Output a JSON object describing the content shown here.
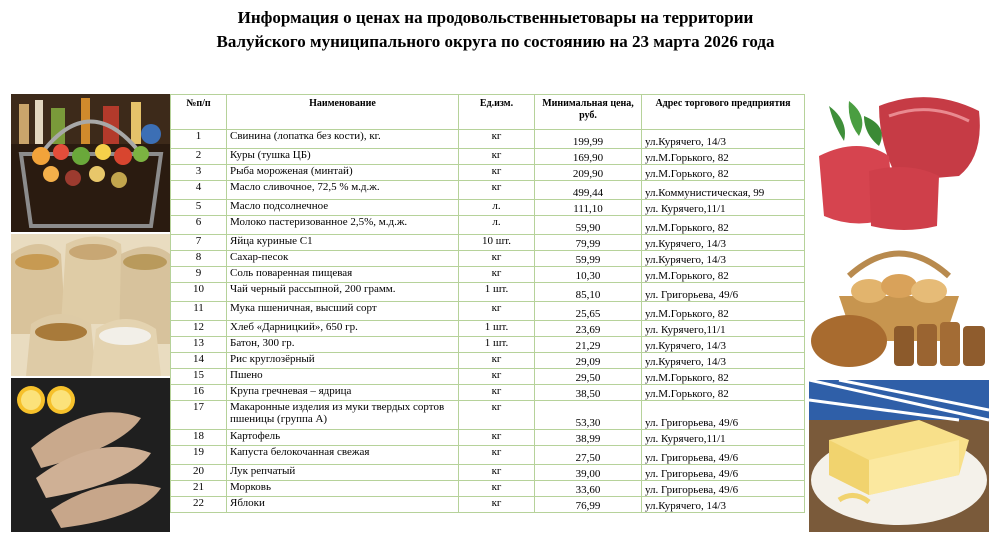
{
  "header": {
    "title_line1": "Информация о ценах на продовольственныетовары на территории",
    "title_line2": "Валуйского муниципального округа по состоянию на 23 марта 2026 года"
  },
  "table": {
    "columns": [
      "№п/п",
      "Наименование",
      "Ед.изм.",
      "Минимальная цена, руб.",
      "Адрес торгового предприятия"
    ],
    "rows": [
      {
        "n": "1",
        "name": "Свинина (лопатка без кости),  кг.",
        "unit": "кг",
        "price": "199,99",
        "address": "ул.Курячего, 14/3"
      },
      {
        "n": "2",
        "name": "Куры (тушка ЦБ)",
        "unit": "кг",
        "price": "169,90",
        "address": "ул.М.Горького, 82"
      },
      {
        "n": "3",
        "name": "Рыба мороженая (минтай)",
        "unit": "кг",
        "price": "209,90",
        "address": "ул.М.Горького, 82"
      },
      {
        "n": "4",
        "name": "Масло сливочное, 72,5 % м.д.ж.",
        "unit": "кг",
        "price": "499,44",
        "address": "ул.Коммунистическая, 99"
      },
      {
        "n": "5",
        "name": "Масло подсолнечное",
        "unit": "л.",
        "price": "111,10",
        "address": "ул. Курячего,11/1"
      },
      {
        "n": "6",
        "name": "Молоко пастеризованное 2,5%, м.д.ж.",
        "unit": "л.",
        "price": "59,90",
        "address": "ул.М.Горького, 82"
      },
      {
        "n": "7",
        "name": "Яйца куриные С1",
        "unit": "10 шт.",
        "price": "79,99",
        "address": "ул.Курячего, 14/3"
      },
      {
        "n": "8",
        "name": "Сахар-песок",
        "unit": "кг",
        "price": "59,99",
        "address": "ул.Курячего, 14/3"
      },
      {
        "n": "9",
        "name": "Соль поваренная пищевая",
        "unit": "кг",
        "price": "10,30",
        "address": "ул.М.Горького, 82"
      },
      {
        "n": "10",
        "name": "Чай черный рассыпной, 200 грамм.",
        "unit": "1 шт.",
        "price": "85,10",
        "address": "ул. Григорьева, 49/6"
      },
      {
        "n": "11",
        "name": "Мука пшеничная, высший сорт",
        "unit": "кг",
        "price": "25,65",
        "address": "ул.М.Горького, 82"
      },
      {
        "n": "12",
        "name": "Хлеб «Дарницкий», 650 гр.",
        "unit": "1 шт.",
        "price": "23,69",
        "address": "ул. Курячего,11/1"
      },
      {
        "n": "13",
        "name": "Батон, 300 гр.",
        "unit": "1 шт.",
        "price": "21,29",
        "address": "ул.Курячего, 14/3"
      },
      {
        "n": "14",
        "name": "Рис круглозёрный",
        "unit": "кг",
        "price": "29,09",
        "address": "ул.Курячего, 14/3"
      },
      {
        "n": "15",
        "name": "Пшено",
        "unit": "кг",
        "price": "29,50",
        "address": "ул.М.Горького, 82"
      },
      {
        "n": "16",
        "name": "Крупа гречневая – ядрица",
        "unit": "кг",
        "price": "38,50",
        "address": "ул.М.Горького, 82"
      },
      {
        "n": "17",
        "name": "Макаронные изделия из муки твердых сортов пшеницы (группа А)",
        "unit": "кг",
        "price": "53,30",
        "address": "ул. Григорьева, 49/6"
      },
      {
        "n": "18",
        "name": "Картофель",
        "unit": "кг",
        "price": "38,99",
        "address": "ул. Курячего,11/1"
      },
      {
        "n": "19",
        "name": "Капуста белокочанная свежая",
        "unit": "кг",
        "price": "27,50",
        "address": "ул. Григорьева, 49/6"
      },
      {
        "n": "20",
        "name": "Лук репчатый",
        "unit": "кг",
        "price": "39,00",
        "address": "ул. Григорьева, 49/6"
      },
      {
        "n": "21",
        "name": "Морковь",
        "unit": "кг",
        "price": "33,60",
        "address": "ул. Григорьева, 49/6"
      },
      {
        "n": "22",
        "name": "Яблоки",
        "unit": "кг",
        "price": "76,99",
        "address": "ул.Курячего, 14/3"
      }
    ]
  },
  "images": {
    "left": [
      "grocery-basket-photo",
      "grain-sacks-photo",
      "fish-lemon-photo"
    ],
    "right": [
      "raw-meat-photo",
      "bread-basket-photo",
      "butter-photo"
    ]
  },
  "colors": {
    "table_border": "#b6d29a"
  }
}
